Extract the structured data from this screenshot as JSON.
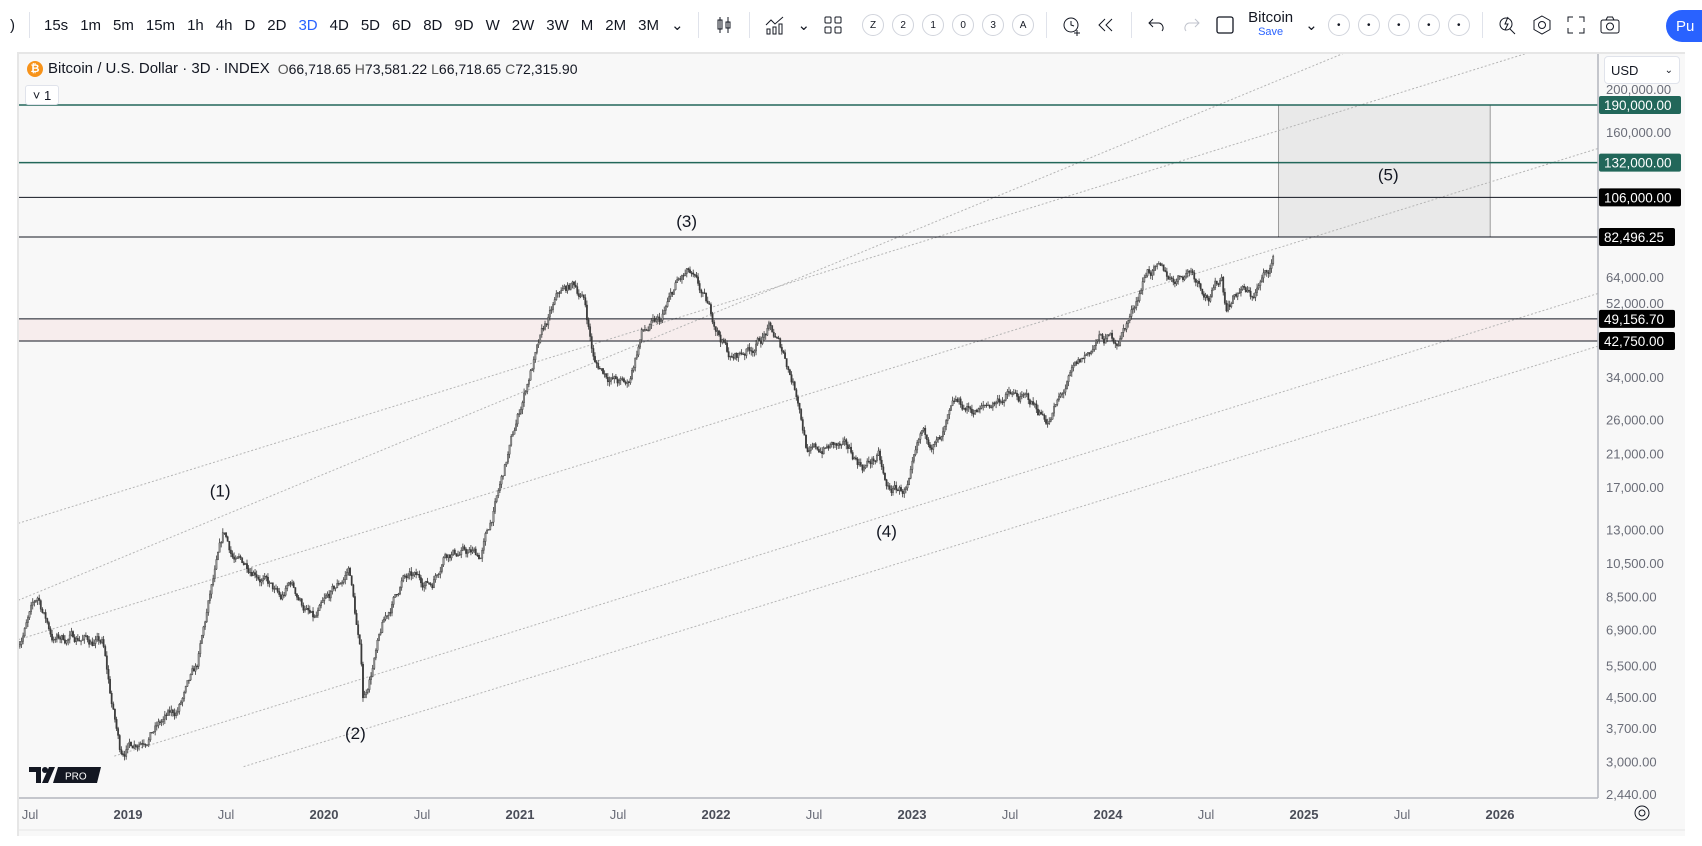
{
  "toolbar": {
    "intervals": [
      "15s",
      "1m",
      "5m",
      "15m",
      "1h",
      "4h",
      "D",
      "2D",
      "3D",
      "4D",
      "5D",
      "6D",
      "8D",
      "9D",
      "W",
      "2W",
      "3W",
      "M",
      "2M",
      "3M"
    ],
    "active_interval": "3D",
    "number_buttons": [
      "Z",
      "2",
      "1",
      "0",
      "3",
      "A"
    ],
    "layout_name": "Bitcoin",
    "save_label": "Save",
    "dot_buttons": [
      "•",
      "•",
      "•",
      "•",
      "•"
    ],
    "publish_label": "Pu",
    "icons": [
      "candles-icon",
      "indicators-icon",
      "layouts-icon",
      "alert-icon",
      "replay-icon",
      "undo-icon",
      "redo-icon",
      "box-icon",
      "quick-search-icon",
      "settings-icon",
      "fullscreen-icon",
      "camera-icon"
    ]
  },
  "legend": {
    "symbol": "Bitcoin / U.S. Dollar · 3D · INDEX",
    "open_label": "O",
    "open": "66,718.65",
    "high_label": "H",
    "high": "73,581.22",
    "low_label": "L",
    "low": "66,718.65",
    "close_label": "C",
    "close": "72,315.90",
    "collapse_label": "˅ 1"
  },
  "currency": "USD",
  "chart_data": {
    "type": "candlestick",
    "scale": "log",
    "colors": {
      "candle": "#3a3a3a",
      "green_line": "#22675a",
      "black_line": "#131722",
      "zone": "#f7eded",
      "box": "#e9e9e9",
      "channel": "#b5b5b5"
    },
    "price_ticks": [
      "200,000.00",
      "160,000.00",
      "64,000.00",
      "52,000.00",
      "34,000.00",
      "26,000.00",
      "21,000.00",
      "17,000.00",
      "13,000.00",
      "10,500.00",
      "8,500.00",
      "6,900.00",
      "5,500.00",
      "4,500.00",
      "3,700.00",
      "3,000.00",
      "2,440.00"
    ],
    "price_tick_values": [
      200000,
      160000,
      64000,
      52000,
      34000,
      26000,
      21000,
      17000,
      13000,
      10500,
      8500,
      6900,
      5500,
      4500,
      3700,
      3000,
      2440
    ],
    "date_ticks": [
      {
        "label": "Jul",
        "t": 2018.5,
        "year": false
      },
      {
        "label": "2019",
        "t": 2019,
        "year": true
      },
      {
        "label": "Jul",
        "t": 2019.5,
        "year": false
      },
      {
        "label": "2020",
        "t": 2020,
        "year": true
      },
      {
        "label": "Jul",
        "t": 2020.5,
        "year": false
      },
      {
        "label": "2021",
        "t": 2021,
        "year": true
      },
      {
        "label": "Jul",
        "t": 2021.5,
        "year": false
      },
      {
        "label": "2022",
        "t": 2022,
        "year": true
      },
      {
        "label": "Jul",
        "t": 2022.5,
        "year": false
      },
      {
        "label": "2023",
        "t": 2023,
        "year": true
      },
      {
        "label": "Jul",
        "t": 2023.5,
        "year": false
      },
      {
        "label": "2024",
        "t": 2024,
        "year": true
      },
      {
        "label": "Jul",
        "t": 2024.5,
        "year": false
      },
      {
        "label": "2025",
        "t": 2025,
        "year": true
      },
      {
        "label": "Jul",
        "t": 2025.5,
        "year": false
      },
      {
        "label": "2026",
        "t": 2026,
        "year": true
      }
    ],
    "horizontal_levels": [
      {
        "price": 190000,
        "label": "190,000.00",
        "style": "green"
      },
      {
        "price": 132000,
        "label": "132,000.00",
        "style": "green"
      },
      {
        "price": 106000,
        "label": "106,000.00",
        "style": "black"
      },
      {
        "price": 82496.25,
        "label": "82,496.25",
        "style": "black"
      },
      {
        "price": 49156.7,
        "label": "49,156.70",
        "style": "black"
      },
      {
        "price": 42750,
        "label": "42,750.00",
        "style": "black"
      }
    ],
    "zone": {
      "from": 42750,
      "to": 49156.7
    },
    "target_box": {
      "t1": 2024.87,
      "t2": 2025.95,
      "p1": 82496.25,
      "p2": 190000
    },
    "wave_labels": [
      {
        "text": "(1)",
        "t": 2019.47,
        "price": 16000
      },
      {
        "text": "(2)",
        "t": 2020.16,
        "price": 3450
      },
      {
        "text": "(3)",
        "t": 2021.85,
        "price": 88000
      },
      {
        "text": "(4)",
        "t": 2022.87,
        "price": 12400
      },
      {
        "text": "(5)",
        "t": 2025.43,
        "price": 118000
      }
    ],
    "channel_lines": [
      [
        [
          2018.44,
          13500
        ],
        [
          2026.2,
          270000
        ]
      ],
      [
        [
          2018.44,
          8300
        ],
        [
          2025.25,
          270000
        ]
      ],
      [
        [
          2018.44,
          6470
        ],
        [
          2026.6,
          150000
        ]
      ],
      [
        [
          2018.93,
          3100
        ],
        [
          2026.6,
          60000
        ]
      ],
      [
        [
          2019.59,
          2900
        ],
        [
          2026.6,
          43000
        ]
      ]
    ],
    "price_path": [
      [
        2018.44,
        6400
      ],
      [
        2018.54,
        8400
      ],
      [
        2018.62,
        6500
      ],
      [
        2018.75,
        6600
      ],
      [
        2018.87,
        6300
      ],
      [
        2018.92,
        4200
      ],
      [
        2018.96,
        3200
      ],
      [
        2019.1,
        3600
      ],
      [
        2019.25,
        4100
      ],
      [
        2019.35,
        5300
      ],
      [
        2019.42,
        8500
      ],
      [
        2019.49,
        12500
      ],
      [
        2019.55,
        10500
      ],
      [
        2019.65,
        10300
      ],
      [
        2019.78,
        8200
      ],
      [
        2019.83,
        9200
      ],
      [
        2019.95,
        7200
      ],
      [
        2020.1,
        9500
      ],
      [
        2020.13,
        10200
      ],
      [
        2020.19,
        5600
      ],
      [
        2020.2,
        4400
      ],
      [
        2020.3,
        7000
      ],
      [
        2020.4,
        9500
      ],
      [
        2020.55,
        9300
      ],
      [
        2020.62,
        11500
      ],
      [
        2020.8,
        11000
      ],
      [
        2020.88,
        15500
      ],
      [
        2020.97,
        24000
      ],
      [
        2021.05,
        35000
      ],
      [
        2021.12,
        45000
      ],
      [
        2021.2,
        57000
      ],
      [
        2021.28,
        61000
      ],
      [
        2021.33,
        55000
      ],
      [
        2021.38,
        37000
      ],
      [
        2021.5,
        33000
      ],
      [
        2021.55,
        32000
      ],
      [
        2021.62,
        45000
      ],
      [
        2021.72,
        48000
      ],
      [
        2021.8,
        61000
      ],
      [
        2021.86,
        65000
      ],
      [
        2021.92,
        57000
      ],
      [
        2022.0,
        47000
      ],
      [
        2022.08,
        38000
      ],
      [
        2022.2,
        42000
      ],
      [
        2022.27,
        46000
      ],
      [
        2022.35,
        39000
      ],
      [
        2022.42,
        30000
      ],
      [
        2022.47,
        21000
      ],
      [
        2022.6,
        22000
      ],
      [
        2022.68,
        21000
      ],
      [
        2022.75,
        19500
      ],
      [
        2022.83,
        20500
      ],
      [
        2022.87,
        16500
      ],
      [
        2022.98,
        16700
      ],
      [
        2023.05,
        23000
      ],
      [
        2023.15,
        22500
      ],
      [
        2023.22,
        28000
      ],
      [
        2023.35,
        27500
      ],
      [
        2023.48,
        30500
      ],
      [
        2023.6,
        29000
      ],
      [
        2023.7,
        26000
      ],
      [
        2023.82,
        34500
      ],
      [
        2023.95,
        43000
      ],
      [
        2024.05,
        43000
      ],
      [
        2024.12,
        51000
      ],
      [
        2024.2,
        68000
      ],
      [
        2024.33,
        63000
      ],
      [
        2024.42,
        68000
      ],
      [
        2024.52,
        57000
      ],
      [
        2024.58,
        64000
      ],
      [
        2024.6,
        54000
      ],
      [
        2024.68,
        60000
      ],
      [
        2024.73,
        56000
      ],
      [
        2024.8,
        64000
      ],
      [
        2024.85,
        72300
      ]
    ]
  }
}
